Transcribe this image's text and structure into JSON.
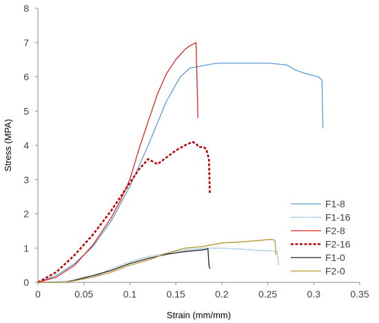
{
  "chart_data": {
    "type": "line",
    "title": "",
    "xlabel": "Strain (mm/mm)",
    "ylabel": "Stress (MPA)",
    "xlim": [
      0,
      0.35
    ],
    "ylim": [
      0,
      8
    ],
    "xticks": [
      0,
      0.05,
      0.1,
      0.15,
      0.2,
      0.25,
      0.3,
      0.35
    ],
    "xtick_labels": [
      "0",
      "0.05",
      "0.1",
      "0.15",
      "0.2",
      "0.25",
      "0.3",
      "0.35"
    ],
    "yticks": [
      0,
      1,
      2,
      3,
      4,
      5,
      6,
      7,
      8
    ],
    "ytick_labels": [
      "0",
      "1",
      "2",
      "3",
      "4",
      "5",
      "6",
      "7",
      "8"
    ],
    "grid": false,
    "legend_position": "bottom-right",
    "series": [
      {
        "name": "F1-8",
        "color": "#5b9bd5",
        "dash": "solid",
        "x": [
          0,
          0.02,
          0.04,
          0.06,
          0.08,
          0.1,
          0.12,
          0.14,
          0.155,
          0.165,
          0.175,
          0.19,
          0.2,
          0.22,
          0.25,
          0.27,
          0.28,
          0.29,
          0.305,
          0.309,
          0.31
        ],
        "y": [
          0,
          0.2,
          0.55,
          1.05,
          1.8,
          2.8,
          4.0,
          5.3,
          6.0,
          6.25,
          6.3,
          6.38,
          6.4,
          6.4,
          6.4,
          6.35,
          6.2,
          6.1,
          6.0,
          5.9,
          4.5
        ]
      },
      {
        "name": "F1-16",
        "color": "#5b9bd5",
        "dash": "dot",
        "x": [
          0,
          0.04,
          0.06,
          0.08,
          0.1,
          0.12,
          0.14,
          0.16,
          0.18,
          0.2,
          0.22,
          0.24,
          0.255,
          0.26,
          0.262
        ],
        "y": [
          0,
          0.05,
          0.15,
          0.4,
          0.6,
          0.75,
          0.85,
          0.95,
          1.0,
          1.0,
          0.97,
          0.93,
          0.92,
          0.9,
          0.5
        ]
      },
      {
        "name": "F2-8",
        "color": "#e0201c",
        "dash": "solid",
        "x": [
          0,
          0.02,
          0.04,
          0.06,
          0.08,
          0.09,
          0.1,
          0.11,
          0.12,
          0.13,
          0.14,
          0.15,
          0.16,
          0.165,
          0.172,
          0.173,
          0.174
        ],
        "y": [
          0,
          0.15,
          0.5,
          1.1,
          1.9,
          2.4,
          3.0,
          3.9,
          4.7,
          5.5,
          6.1,
          6.5,
          6.8,
          6.9,
          7.0,
          6.0,
          4.8
        ]
      },
      {
        "name": "F2-16",
        "color": "#c00000",
        "dash": "dash",
        "x": [
          0,
          0.02,
          0.04,
          0.06,
          0.08,
          0.1,
          0.11,
          0.12,
          0.13,
          0.14,
          0.15,
          0.16,
          0.168,
          0.172,
          0.175,
          0.18,
          0.183,
          0.186,
          0.187
        ],
        "y": [
          0,
          0.3,
          0.8,
          1.4,
          2.1,
          2.9,
          3.3,
          3.6,
          3.45,
          3.65,
          3.85,
          4.0,
          4.1,
          4.05,
          3.95,
          3.95,
          3.9,
          3.6,
          2.6
        ]
      },
      {
        "name": "F1-0",
        "color": "#1a1a1a",
        "dash": "solid",
        "x": [
          0,
          0.03,
          0.06,
          0.08,
          0.1,
          0.12,
          0.14,
          0.16,
          0.18,
          0.185,
          0.186,
          0.187
        ],
        "y": [
          0,
          0.0,
          0.2,
          0.35,
          0.55,
          0.7,
          0.82,
          0.9,
          0.95,
          0.98,
          0.5,
          0.4
        ]
      },
      {
        "name": "F2-0",
        "color": "#b8962e",
        "dash": "solid",
        "x": [
          0,
          0.03,
          0.06,
          0.08,
          0.1,
          0.12,
          0.14,
          0.16,
          0.18,
          0.2,
          0.22,
          0.24,
          0.25,
          0.256,
          0.258,
          0.259
        ],
        "y": [
          0,
          0.0,
          0.15,
          0.3,
          0.5,
          0.65,
          0.85,
          1.0,
          1.05,
          1.15,
          1.18,
          1.22,
          1.25,
          1.25,
          1.2,
          0.8
        ]
      }
    ]
  }
}
